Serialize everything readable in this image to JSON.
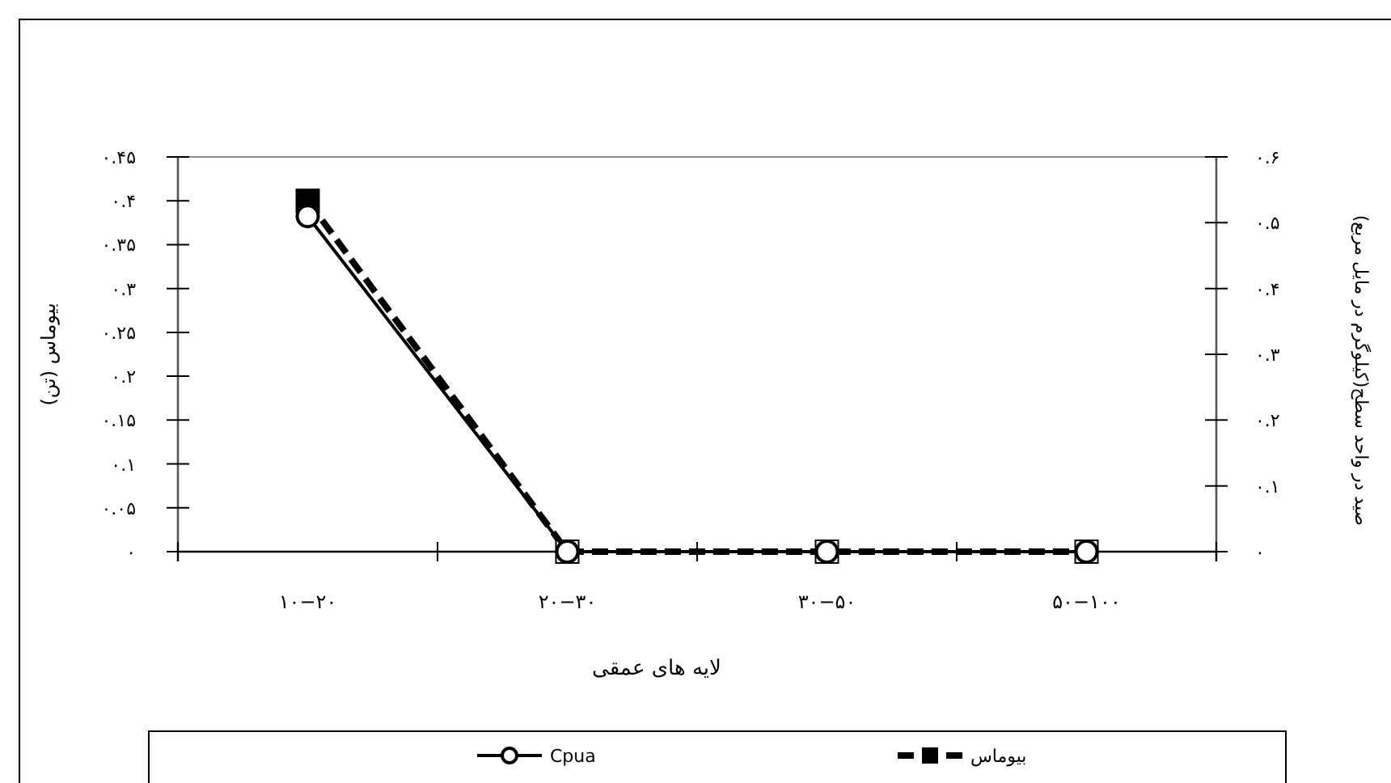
{
  "chart_data": {
    "type": "line",
    "xlabel": "لایه های عمقی",
    "ylabel": "بیوماس (تن)",
    "y2label": "صید در واحد سطح(کیلوگرم در مایل مربع)",
    "categories": [
      "۱۰−۲۰",
      "۲۰−۳۰",
      "۳۰−۵۰",
      "۵۰−۱۰۰"
    ],
    "series": [
      {
        "name": "بیوماس",
        "color": "#000000",
        "values": [
          0.4,
          0,
          0,
          0
        ],
        "marker": "square",
        "line_style": "dashed"
      },
      {
        "name": "Cpua",
        "color": "#000000",
        "values": [
          0.51,
          0,
          0,
          0
        ],
        "marker": "circle",
        "line_style": "solid",
        "axis": "y2"
      }
    ],
    "ylim": [
      0,
      0.45
    ],
    "yticks": [
      {
        "value": 0,
        "label": "۰"
      },
      {
        "value": 0.05,
        "label": "۰.۰۵"
      },
      {
        "value": 0.1,
        "label": "۰.۱"
      },
      {
        "value": 0.15,
        "label": "۰.۱۵"
      },
      {
        "value": 0.2,
        "label": "۰.۲"
      },
      {
        "value": 0.25,
        "label": "۰.۲۵"
      },
      {
        "value": 0.3,
        "label": "۰.۳"
      },
      {
        "value": 0.35,
        "label": "۰.۳۵"
      },
      {
        "value": 0.4,
        "label": "۰.۴"
      },
      {
        "value": 0.45,
        "label": "۰.۴۵"
      }
    ],
    "y2lim": [
      0,
      0.6
    ],
    "y2ticks": [
      {
        "value": 0,
        "label": "۰"
      },
      {
        "value": 0.1,
        "label": "۰.۱"
      },
      {
        "value": 0.2,
        "label": "۰.۲"
      },
      {
        "value": 0.3,
        "label": "۰.۳"
      },
      {
        "value": 0.4,
        "label": "۰.۴"
      },
      {
        "value": 0.5,
        "label": "۰.۵"
      },
      {
        "value": 0.6,
        "label": "۰.۶"
      }
    ],
    "grid": false,
    "legend": "bottom"
  }
}
